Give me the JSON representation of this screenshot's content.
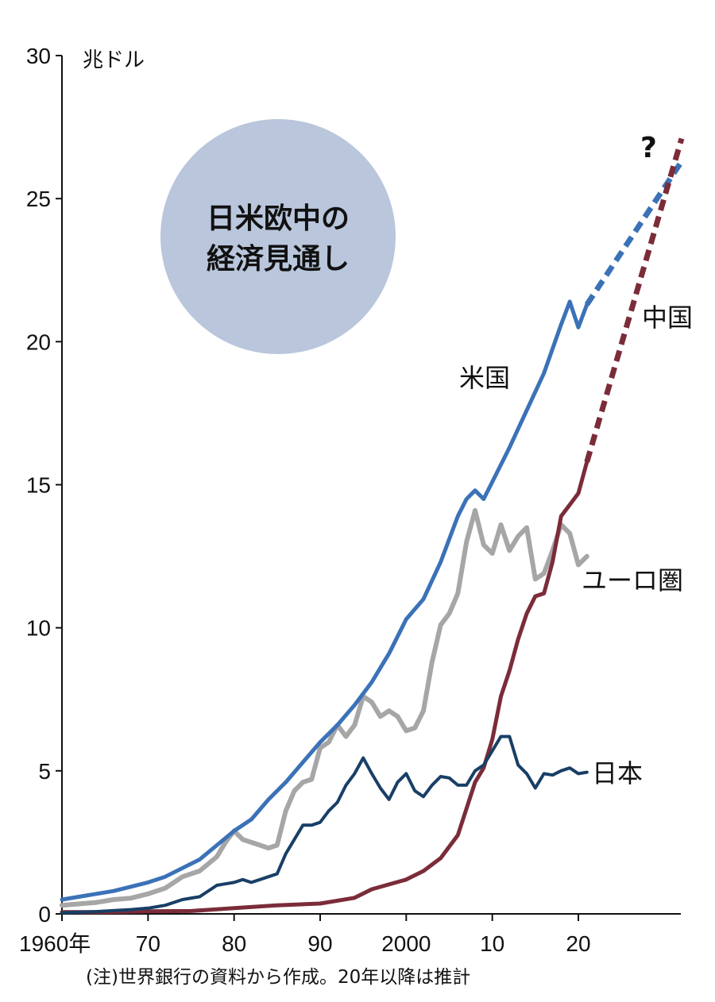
{
  "chart_data": {
    "type": "line",
    "title": "日米欧中の経済見通し",
    "unit_label": "兆ドル",
    "note": "(注)世界銀行の資料から作成。20年以降は推計",
    "projection_mark": "?",
    "xlim": [
      1960,
      2032
    ],
    "ylim": [
      0,
      30
    ],
    "y_ticks": [
      {
        "value": 0,
        "label": "0"
      },
      {
        "value": 5,
        "label": "5"
      },
      {
        "value": 10,
        "label": "10"
      },
      {
        "value": 15,
        "label": "15"
      },
      {
        "value": 20,
        "label": "20"
      },
      {
        "value": 25,
        "label": "25"
      },
      {
        "value": 30,
        "label": "30"
      }
    ],
    "x_ticks": [
      {
        "value": 1960,
        "label": "1960年"
      },
      {
        "value": 1970,
        "label": "70"
      },
      {
        "value": 1980,
        "label": "80"
      },
      {
        "value": 1990,
        "label": "90"
      },
      {
        "value": 2000,
        "label": "2000"
      },
      {
        "value": 2010,
        "label": "10"
      },
      {
        "value": 2020,
        "label": "20"
      }
    ],
    "series": [
      {
        "name": "ユーロ圏",
        "color": "#a6a6a6",
        "x": [
          1960,
          1962,
          1964,
          1966,
          1968,
          1970,
          1972,
          1974,
          1976,
          1978,
          1979,
          1980,
          1981,
          1982,
          1983,
          1984,
          1985,
          1986,
          1987,
          1988,
          1989,
          1990,
          1991,
          1992,
          1993,
          1994,
          1995,
          1996,
          1997,
          1998,
          1999,
          2000,
          2001,
          2002,
          2003,
          2004,
          2005,
          2006,
          2007,
          2008,
          2009,
          2010,
          2011,
          2012,
          2013,
          2014,
          2015,
          2016,
          2017,
          2018,
          2019,
          2020,
          2021
        ],
        "values": [
          0.3,
          0.35,
          0.4,
          0.5,
          0.55,
          0.7,
          0.9,
          1.3,
          1.5,
          2.0,
          2.5,
          2.9,
          2.6,
          2.5,
          2.4,
          2.3,
          2.4,
          3.6,
          4.3,
          4.6,
          4.7,
          5.8,
          6.0,
          6.6,
          6.2,
          6.6,
          7.6,
          7.4,
          6.9,
          7.1,
          6.9,
          6.4,
          6.5,
          7.1,
          8.8,
          10.1,
          10.5,
          11.2,
          13.0,
          14.1,
          12.9,
          12.6,
          13.6,
          12.7,
          13.2,
          13.5,
          11.7,
          11.9,
          12.7,
          13.6,
          13.3,
          12.2,
          12.5
        ]
      },
      {
        "name": "米国",
        "color": "#3b72b7",
        "x": [
          1960,
          1962,
          1964,
          1966,
          1968,
          1970,
          1972,
          1974,
          1976,
          1978,
          1980,
          1982,
          1984,
          1986,
          1988,
          1990,
          1992,
          1994,
          1996,
          1998,
          2000,
          2002,
          2004,
          2006,
          2007,
          2008,
          2009,
          2010,
          2012,
          2014,
          2016,
          2018,
          2019,
          2020,
          2021
        ],
        "values": [
          0.5,
          0.6,
          0.7,
          0.8,
          0.95,
          1.1,
          1.3,
          1.6,
          1.9,
          2.4,
          2.9,
          3.3,
          4.0,
          4.6,
          5.3,
          6.0,
          6.6,
          7.3,
          8.1,
          9.1,
          10.3,
          11.0,
          12.3,
          13.9,
          14.5,
          14.8,
          14.5,
          15.1,
          16.3,
          17.6,
          18.9,
          20.6,
          21.4,
          20.5,
          21.3
        ]
      },
      {
        "name": "中国",
        "color": "#7b2c39",
        "x": [
          1960,
          1965,
          1970,
          1975,
          1980,
          1985,
          1990,
          1994,
          1996,
          1998,
          2000,
          2002,
          2004,
          2006,
          2008,
          2009,
          2010,
          2011,
          2012,
          2013,
          2014,
          2015,
          2016,
          2017,
          2018,
          2019,
          2020,
          2021
        ],
        "values": [
          0.06,
          0.06,
          0.09,
          0.1,
          0.2,
          0.3,
          0.36,
          0.56,
          0.86,
          1.03,
          1.2,
          1.5,
          1.95,
          2.75,
          4.6,
          5.1,
          6.1,
          7.6,
          8.5,
          9.6,
          10.5,
          11.1,
          11.2,
          12.3,
          13.9,
          14.3,
          14.7,
          15.8
        ]
      },
      {
        "name": "日本",
        "color": "#183f66",
        "x": [
          1960,
          1964,
          1968,
          1970,
          1972,
          1974,
          1976,
          1978,
          1979,
          1980,
          1981,
          1982,
          1983,
          1984,
          1985,
          1986,
          1987,
          1988,
          1989,
          1990,
          1991,
          1992,
          1993,
          1994,
          1995,
          1996,
          1997,
          1998,
          1999,
          2000,
          2001,
          2002,
          2003,
          2004,
          2005,
          2006,
          2007,
          2008,
          2009,
          2010,
          2011,
          2012,
          2013,
          2014,
          2015,
          2016,
          2017,
          2018,
          2019,
          2020,
          2021
        ],
        "values": [
          0.04,
          0.08,
          0.15,
          0.2,
          0.3,
          0.5,
          0.6,
          1.0,
          1.05,
          1.1,
          1.2,
          1.1,
          1.2,
          1.3,
          1.4,
          2.1,
          2.6,
          3.1,
          3.1,
          3.2,
          3.6,
          3.9,
          4.5,
          4.9,
          5.45,
          4.9,
          4.4,
          4.0,
          4.6,
          4.9,
          4.3,
          4.1,
          4.5,
          4.8,
          4.75,
          4.5,
          4.5,
          5.0,
          5.2,
          5.7,
          6.2,
          6.2,
          5.2,
          4.9,
          4.4,
          4.9,
          4.85,
          5.0,
          5.1,
          4.9,
          4.95
        ]
      }
    ],
    "projections": [
      {
        "name": "米国",
        "x": [
          2021,
          2032
        ],
        "values": [
          21.3,
          26.3
        ]
      },
      {
        "name": "中国",
        "x": [
          2021,
          2032
        ],
        "values": [
          15.8,
          27.1
        ]
      }
    ]
  }
}
